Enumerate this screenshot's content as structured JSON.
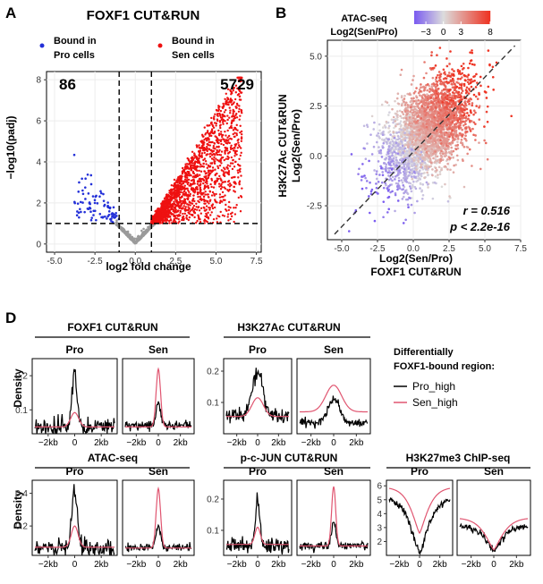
{
  "panel_a": {
    "letter": "A",
    "title": "FOXF1 CUT&RUN",
    "legend_pro": [
      "Bound in",
      "Pro cells"
    ],
    "legend_sen": [
      "Bound in",
      "Sen cells"
    ],
    "count_pro": "86",
    "count_sen": "5729"
  },
  "panel_b": {
    "letter": "B",
    "colorbar_title": [
      "ATAC-seq",
      "Log2(Sen/Pro)"
    ],
    "colorbar_ticks": [
      "−3",
      "0",
      "3",
      "8"
    ],
    "ylabel_lines": [
      "H3K27Ac CUT&RUN",
      "Log2(Sen/Pro)"
    ],
    "xlabel_lines": [
      "Log2(Sen/Pro)",
      "FOXF1 CUT&RUN"
    ],
    "stat_r": "r = 0.516",
    "stat_p": "p < 2.2e-16"
  },
  "panel_d": {
    "letter": "D",
    "density_label": "Density",
    "legend_title": [
      "Differentially",
      "FOXF1-bound region:"
    ],
    "legend_pro_high": "Pro_high",
    "legend_sen_high": "Sen_high"
  },
  "chart_data": [
    {
      "type": "scatter",
      "title": "FOXF1 CUT&RUN",
      "xlabel": "log2 fold change",
      "ylabel": "−log10(padj)",
      "xlim": [
        -5.5,
        7.8
      ],
      "ylim": [
        -0.4,
        8.4
      ],
      "xticks": [
        "-5.0",
        "-2.5",
        "0.0",
        "2.5",
        "5.0",
        "7.5"
      ],
      "yticks": [
        "0",
        "2",
        "4",
        "6",
        "8"
      ],
      "thresholds": {
        "log2fc": [
          -1,
          1
        ],
        "neg_log10_padj": 1
      },
      "series": [
        {
          "name": "Bound in Pro cells",
          "count": 86,
          "color": "#2330d8"
        },
        {
          "name": "Bound in Sen cells",
          "count": 5729,
          "color": "#ee1111"
        },
        {
          "name": "",
          "color": "#9a9a9a"
        }
      ]
    },
    {
      "type": "scatter",
      "xlabel": "Log2(Sen/Pro) FOXF1 CUT&RUN",
      "ylabel": "H3K27Ac CUT&RUN Log2(Sen/Pro)",
      "xlim": [
        -6,
        7.5
      ],
      "ylim": [
        -4.2,
        5.8
      ],
      "xticks": [
        "-5.0",
        "-2.5",
        "0.0",
        "2.5",
        "5.0",
        "7.5"
      ],
      "yticks": [
        "-2.5",
        "0.0",
        "2.5",
        "5.0"
      ],
      "color_scale": {
        "title": "ATAC-seq Log2(Sen/Pro)",
        "range": [
          -5,
          8
        ],
        "ticks": [
          -3,
          0,
          3,
          8
        ],
        "low": "#7b5cf0",
        "mid": "#dcdcdc",
        "high": "#ee3322"
      },
      "fit_line": {
        "slope": 0.75,
        "intercept": 0.2
      },
      "r": 0.516,
      "p": "< 2.2e-16"
    },
    {
      "type": "line",
      "group": "profile_plots",
      "x_ticks": [
        "−2kb",
        "0",
        "2kb"
      ],
      "series_names": [
        "Pro_high",
        "Sen_high"
      ],
      "series_colors": [
        "#000000",
        "#e05570"
      ],
      "panels": [
        {
          "assay": "FOXF1 CUT&RUN",
          "condition": "Pro",
          "yticks": [
            "0.1",
            "0.2"
          ],
          "ylim": [
            0.03,
            0.25
          ],
          "Pro_high": {
            "base": 0.05,
            "peak": 0.21,
            "width": 0.18
          },
          "Sen_high": {
            "base": 0.05,
            "peak": 0.092,
            "width": 0.3
          }
        },
        {
          "assay": "FOXF1 CUT&RUN",
          "condition": "Sen",
          "yticks": [],
          "ylim": [
            0.03,
            0.25
          ],
          "Pro_high": {
            "base": 0.055,
            "peak": 0.125,
            "width": 0.2
          },
          "Sen_high": {
            "base": 0.05,
            "peak": 0.22,
            "width": 0.2
          }
        },
        {
          "assay": "H3K27Ac CUT&RUN",
          "condition": "Pro",
          "yticks": [
            "0.1",
            "0.2"
          ],
          "ylim": [
            0.0,
            0.24
          ],
          "Pro_high": {
            "base": 0.06,
            "peak": 0.195,
            "width": 0.5
          },
          "Sen_high": {
            "base": 0.055,
            "peak": 0.115,
            "width": 0.55
          }
        },
        {
          "assay": "H3K27Ac CUT&RUN",
          "condition": "Sen",
          "yticks": [],
          "ylim": [
            0.0,
            0.24
          ],
          "Pro_high": {
            "base": 0.035,
            "peak": 0.115,
            "width": 0.5
          },
          "Sen_high": {
            "base": 0.07,
            "peak": 0.155,
            "width": 0.7
          }
        },
        {
          "assay": "ATAC-seq",
          "condition": "Pro",
          "yticks": [
            "0.2",
            "0.4"
          ],
          "ylim": [
            0.02,
            0.48
          ],
          "Pro_high": {
            "base": 0.07,
            "peak": 0.41,
            "width": 0.2
          },
          "Sen_high": {
            "base": 0.07,
            "peak": 0.2,
            "width": 0.26
          }
        },
        {
          "assay": "ATAC-seq",
          "condition": "Sen",
          "yticks": [],
          "ylim": [
            0.02,
            0.48
          ],
          "Pro_high": {
            "base": 0.07,
            "peak": 0.2,
            "width": 0.2
          },
          "Sen_high": {
            "base": 0.065,
            "peak": 0.43,
            "width": 0.2
          }
        },
        {
          "assay": "p-c-JUN CUT&RUN",
          "condition": "Pro",
          "yticks": [
            "0.1",
            "0.2"
          ],
          "ylim": [
            0.02,
            0.26
          ],
          "Pro_high": {
            "base": 0.05,
            "peak": 0.2,
            "width": 0.2
          },
          "Sen_high": {
            "base": 0.055,
            "peak": 0.11,
            "width": 0.26
          }
        },
        {
          "assay": "p-c-JUN CUT&RUN",
          "condition": "Sen",
          "yticks": [],
          "ylim": [
            0.02,
            0.26
          ],
          "Pro_high": {
            "base": 0.05,
            "peak": 0.13,
            "width": 0.2
          },
          "Sen_high": {
            "base": 0.05,
            "peak": 0.24,
            "width": 0.18
          }
        },
        {
          "assay": "H3K27me3 ChIP-seq",
          "condition": "Pro",
          "yticks": [
            "2",
            "3",
            "4",
            "5",
            "6"
          ],
          "ylim": [
            1.0,
            6.4
          ],
          "Pro_high": {
            "base": 5.2,
            "dip": 1.1,
            "width": 1.2
          },
          "Sen_high": {
            "base": 5.9,
            "dip": 2.6,
            "width": 1.1
          }
        },
        {
          "assay": "H3K27me3 ChIP-seq",
          "condition": "Sen",
          "yticks": [],
          "ylim": [
            1.0,
            6.4
          ],
          "Pro_high": {
            "base": 3.1,
            "dip": 1.25,
            "width": 1.0
          },
          "Sen_high": {
            "base": 3.7,
            "dip": 1.4,
            "width": 1.1
          }
        }
      ]
    }
  ]
}
